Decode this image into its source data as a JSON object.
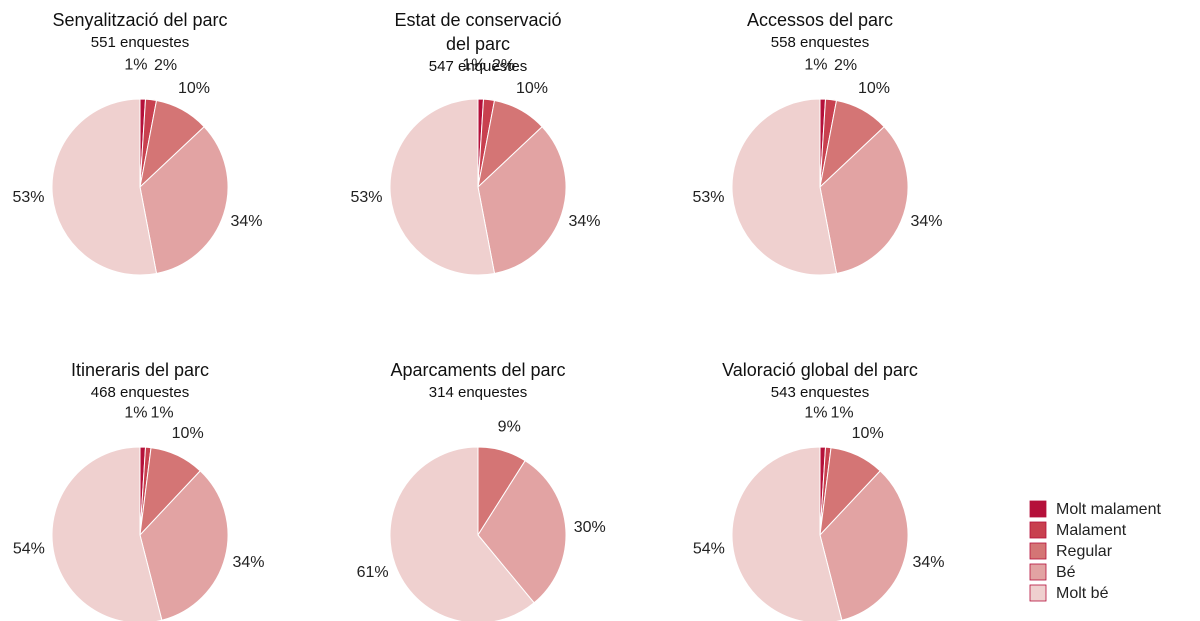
{
  "chart_data": [
    {
      "type": "pie",
      "title": "Senyalització del parc",
      "subtitle": "551 enquestes",
      "categories": [
        "Molt malament",
        "Malament",
        "Regular",
        "Bé",
        "Molt bé"
      ],
      "values": [
        1,
        2,
        10,
        34,
        53
      ],
      "value_labels": [
        "1%",
        "2%",
        "10%",
        "34%",
        "53%"
      ],
      "colors": [
        "#b5103a",
        "#c8404f",
        "#d47575",
        "#e2a3a3",
        "#efd0cf"
      ]
    },
    {
      "type": "pie",
      "title": "Estat de conservació del parc",
      "subtitle": "547 enquestes",
      "categories": [
        "Molt malament",
        "Malament",
        "Regular",
        "Bé",
        "Molt bé"
      ],
      "values": [
        1,
        2,
        10,
        34,
        53
      ],
      "value_labels": [
        "1%",
        "2%",
        "10%",
        "34%",
        "53%"
      ],
      "colors": [
        "#b5103a",
        "#c8404f",
        "#d47575",
        "#e2a3a3",
        "#efd0cf"
      ]
    },
    {
      "type": "pie",
      "title": "Accessos del parc",
      "subtitle": "558 enquestes",
      "categories": [
        "Molt malament",
        "Malament",
        "Regular",
        "Bé",
        "Molt bé"
      ],
      "values": [
        1,
        2,
        10,
        34,
        53
      ],
      "value_labels": [
        "1%",
        "2%",
        "10%",
        "34%",
        "53%"
      ],
      "colors": [
        "#b5103a",
        "#c8404f",
        "#d47575",
        "#e2a3a3",
        "#efd0cf"
      ]
    },
    {
      "type": "pie",
      "title": "Itineraris del parc",
      "subtitle": "468 enquestes",
      "categories": [
        "Molt malament",
        "Malament",
        "Regular",
        "Bé",
        "Molt bé"
      ],
      "values": [
        1,
        1,
        10,
        34,
        54
      ],
      "value_labels": [
        "1%",
        "1%",
        "10%",
        "34%",
        "54%"
      ],
      "colors": [
        "#b5103a",
        "#c8404f",
        "#d47575",
        "#e2a3a3",
        "#efd0cf"
      ]
    },
    {
      "type": "pie",
      "title": "Aparcaments del parc",
      "subtitle": "314 enquestes",
      "categories": [
        "Regular",
        "Bé",
        "Molt bé"
      ],
      "values": [
        9,
        30,
        61
      ],
      "value_labels": [
        "9%",
        "30%",
        "61%"
      ],
      "colors": [
        "#d47575",
        "#e2a3a3",
        "#efd0cf"
      ]
    },
    {
      "type": "pie",
      "title": "Valoració global del parc",
      "subtitle": "543 enquestes",
      "categories": [
        "Molt malament",
        "Malament",
        "Regular",
        "Bé",
        "Molt bé"
      ],
      "values": [
        1,
        1,
        10,
        34,
        54
      ],
      "value_labels": [
        "1%",
        "1%",
        "10%",
        "34%",
        "54%"
      ],
      "colors": [
        "#b5103a",
        "#c8404f",
        "#d47575",
        "#e2a3a3",
        "#efd0cf"
      ],
      "legend": "right"
    }
  ]
}
